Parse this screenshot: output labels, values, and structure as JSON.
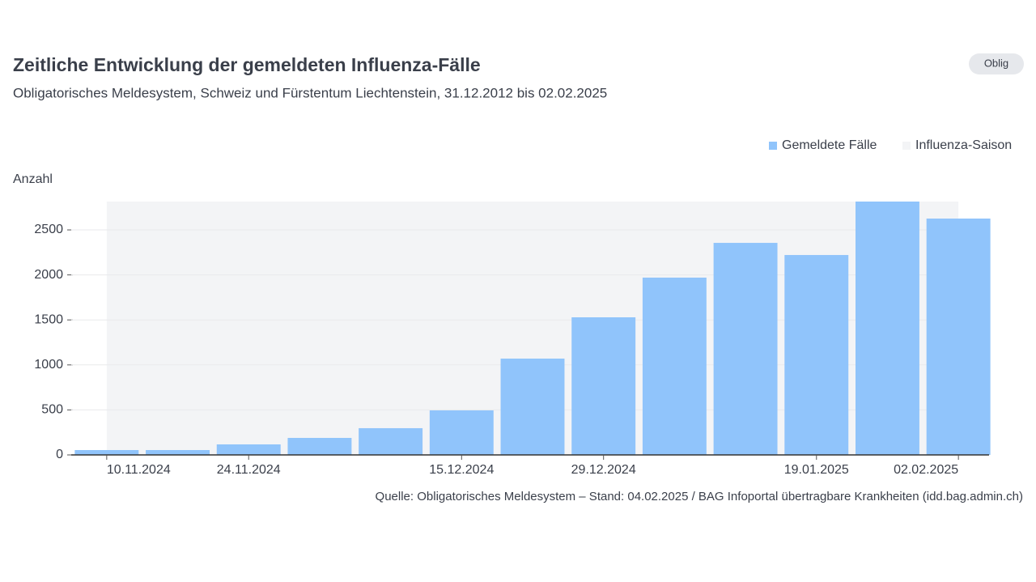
{
  "badge": "Oblig",
  "chart_data": {
    "type": "bar",
    "title": "Zeitliche Entwicklung der gemeldeten Influenza-Fälle",
    "subtitle": "Obligatorisches Meldesystem, Schweiz und Fürstentum Liechtenstein, 31.12.2012 bis 02.02.2025",
    "y_label": "Anzahl",
    "source": "Quelle: Obligatorisches Meldesystem – Stand: 04.02.2025 / BAG Infoportal übertragbare Krankheiten (idd.bag.admin.ch)",
    "categories": [
      "10.11.2024",
      null,
      "24.11.2024",
      null,
      null,
      "15.12.2024",
      null,
      "29.12.2024",
      null,
      null,
      "19.01.2025",
      null,
      "02.02.2025"
    ],
    "series": [
      {
        "name": "Gemeldete Fälle",
        "color": "#90c4fb",
        "values": [
          54,
          54,
          117,
          189,
          297,
          495,
          1070,
          1529,
          1970,
          2356,
          2221,
          2815,
          2626
        ]
      }
    ],
    "season_band": {
      "name": "Influenza-Saison",
      "color": "#f3f4f6"
    },
    "ylim": [
      0,
      2815
    ],
    "yticks": [
      0,
      500,
      1000,
      1500,
      2000,
      2500
    ],
    "grid": true,
    "legend": "top-right"
  }
}
